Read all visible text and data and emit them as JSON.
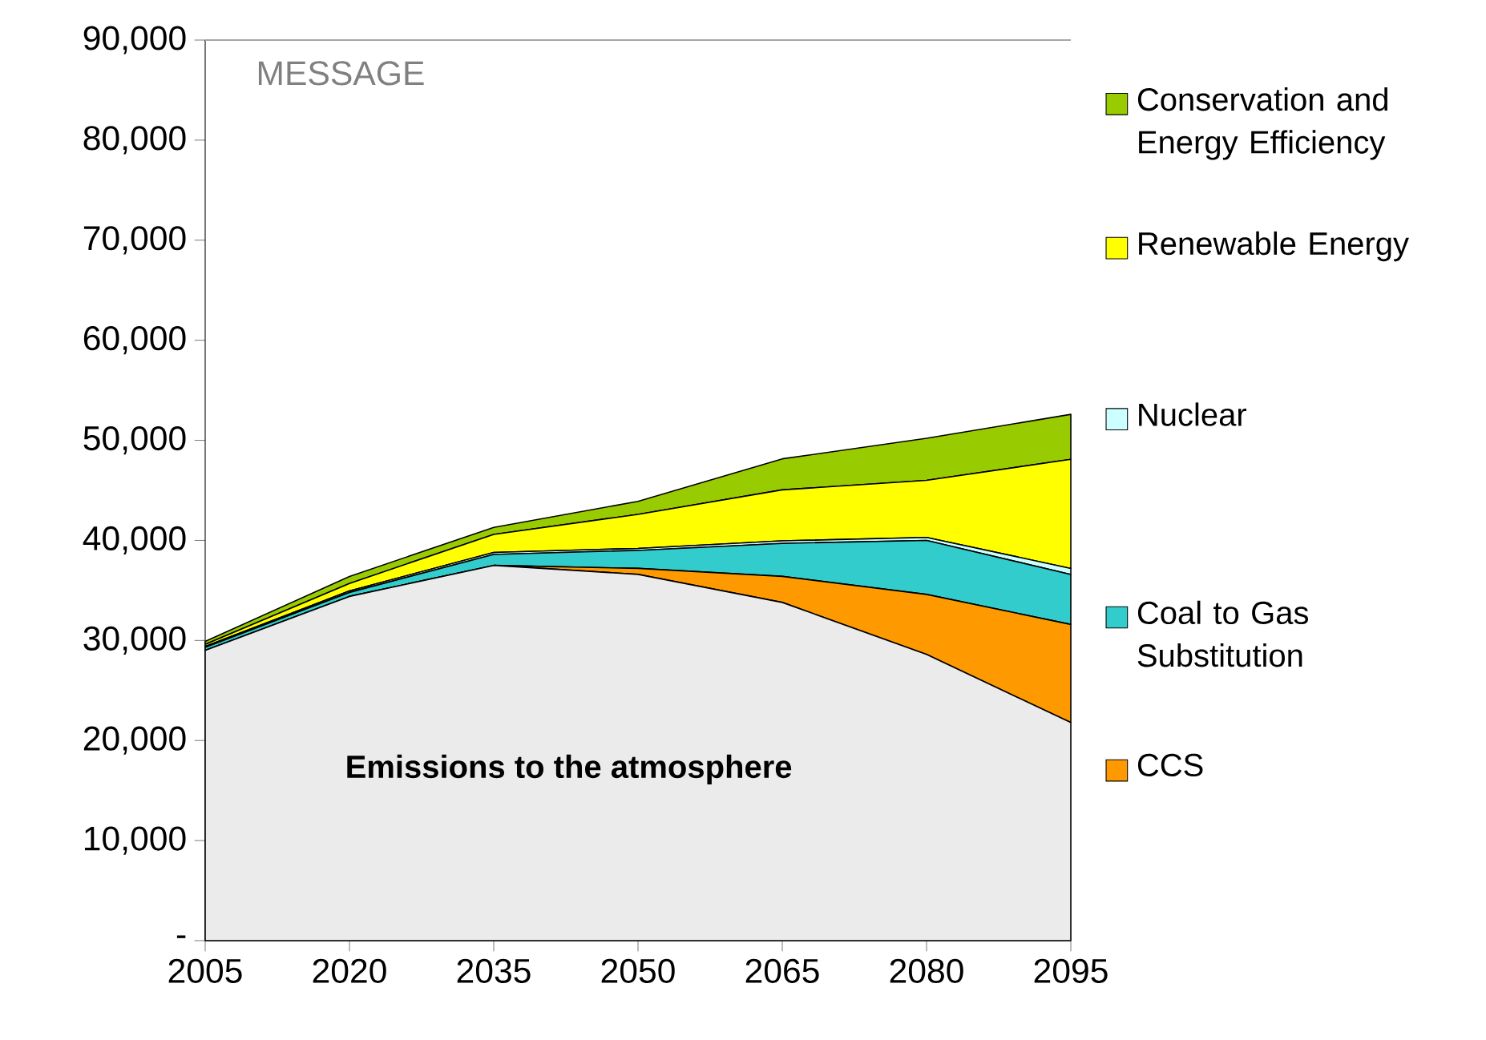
{
  "chart_data": {
    "type": "area",
    "stacked": true,
    "x": [
      2005,
      2020,
      2035,
      2050,
      2065,
      2080,
      2095
    ],
    "series": [
      {
        "name": "Emissions to the atmosphere",
        "color": "#ebebeb",
        "values": [
          29000,
          34400,
          37500,
          36600,
          33800,
          28600,
          21800
        ]
      },
      {
        "name": "CCS",
        "color": "#ff9900",
        "values": [
          0,
          0,
          0,
          600,
          2600,
          6000,
          9800
        ]
      },
      {
        "name": "Coal to Gas Substitution",
        "color": "#33cccc",
        "values": [
          300,
          400,
          1100,
          1800,
          3300,
          5400,
          5000
        ]
      },
      {
        "name": "Nuclear",
        "color": "#ccffff",
        "values": [
          100,
          150,
          200,
          200,
          250,
          300,
          600
        ]
      },
      {
        "name": "Renewable Energy",
        "color": "#ffff00",
        "values": [
          200,
          750,
          1800,
          3400,
          5100,
          5700,
          10900
        ]
      },
      {
        "name": "Conservation and Energy Efficiency",
        "color": "#99cc00",
        "values": [
          300,
          700,
          700,
          1300,
          3100,
          4200,
          4500
        ]
      }
    ],
    "xlim": [
      2005,
      2095
    ],
    "xticks": [
      2005,
      2020,
      2035,
      2050,
      2065,
      2080,
      2095
    ],
    "ylim": [
      0,
      90000
    ],
    "yticks": [
      {
        "value": 0,
        "label": "-"
      },
      {
        "value": 10000,
        "label": "10,000"
      },
      {
        "value": 20000,
        "label": "20,000"
      },
      {
        "value": 30000,
        "label": "30,000"
      },
      {
        "value": 40000,
        "label": "40,000"
      },
      {
        "value": 50000,
        "label": "50,000"
      },
      {
        "value": 60000,
        "label": "60,000"
      },
      {
        "value": 70000,
        "label": "70,000"
      },
      {
        "value": 80000,
        "label": "80,000"
      },
      {
        "value": 90000,
        "label": "90,000"
      }
    ],
    "annotations": [
      "MESSAGE"
    ],
    "legend": "right",
    "grid": false
  }
}
